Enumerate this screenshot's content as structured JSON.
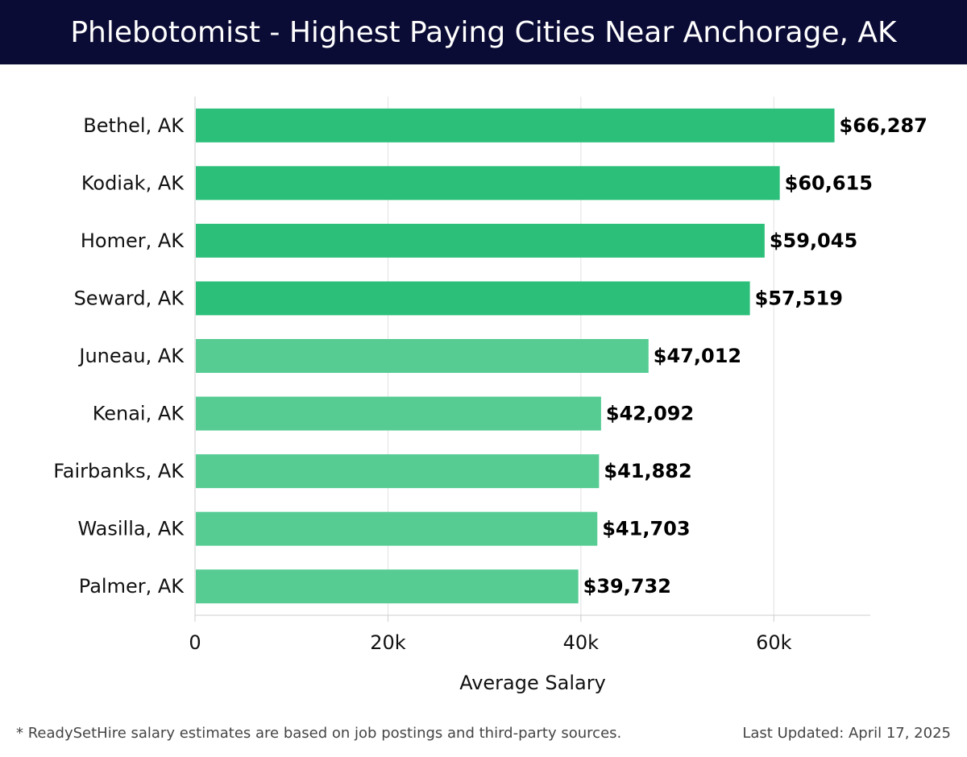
{
  "header": {
    "title": "Phlebotomist - Highest Paying Cities Near Anchorage, AK"
  },
  "chart_data": {
    "type": "bar",
    "orientation": "horizontal",
    "categories": [
      "Bethel, AK",
      "Kodiak, AK",
      "Homer, AK",
      "Seward, AK",
      "Juneau, AK",
      "Kenai, AK",
      "Fairbanks, AK",
      "Wasilla, AK",
      "Palmer, AK"
    ],
    "values": [
      66287,
      60615,
      59045,
      57519,
      47012,
      42092,
      41882,
      41703,
      39732
    ],
    "value_labels": [
      "$66,287",
      "$60,615",
      "$59,045",
      "$57,519",
      "$47,012",
      "$42,092",
      "$41,882",
      "$41,703",
      "$39,732"
    ],
    "xlabel": "Average Salary",
    "xlim": [
      0,
      70000
    ],
    "xticks": [
      0,
      20000,
      40000,
      60000
    ],
    "xtick_labels": [
      "0",
      "20k",
      "40k",
      "60k"
    ],
    "grid": true,
    "colors": {
      "top": "#2bbf7a",
      "rest": "#56cc93"
    },
    "top_count": 4
  },
  "footer": {
    "note": "* ReadySetHire salary estimates are based on job postings and third-party sources.",
    "updated": "Last Updated: April 17, 2025"
  }
}
